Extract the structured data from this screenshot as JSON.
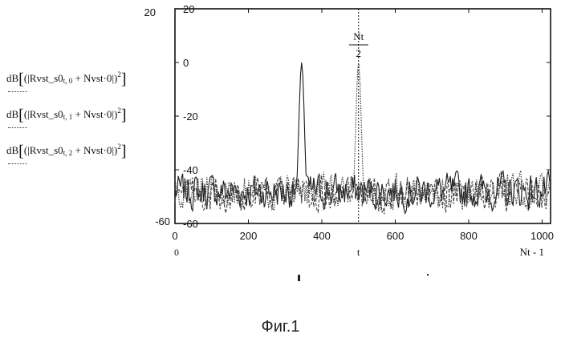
{
  "chart_data": {
    "type": "line",
    "x_ticks": [
      0,
      200,
      400,
      600,
      800,
      1000
    ],
    "y_ticks": [
      -60,
      -40,
      -20,
      0,
      20
    ],
    "y_top_left_label": "20",
    "y_bottom_left_label": "-60",
    "xlim_labels": {
      "left": "0",
      "right": "Nt - 1"
    },
    "xlabel": "t",
    "marker_label": {
      "num": "Nt",
      "den": "2"
    },
    "marker_x": 500,
    "xlim": [
      0,
      1023
    ],
    "ylim": [
      -60,
      20
    ],
    "series_labels": [
      {
        "prefix": "dB",
        "sub": "t, 0",
        "tail": " + Nvst·0"
      },
      {
        "prefix": "dB",
        "sub": "t, 1",
        "tail": " + Nvst·0"
      },
      {
        "prefix": "dB",
        "sub": "t, 2",
        "tail": " + Nvst·0"
      }
    ],
    "series": [
      {
        "peak_x": 345,
        "peak_y": 0,
        "noise_floor": -48,
        "style": "solid",
        "color": "#1a1a1a"
      },
      {
        "peak_x": 500,
        "peak_y": 0,
        "noise_floor": -48,
        "style": "dotted",
        "color": "#333333"
      },
      {
        "peak_x": null,
        "peak_y": null,
        "noise_floor": -49,
        "style": "dashed",
        "color": "#444444"
      }
    ]
  },
  "caption": "Фиг.1"
}
